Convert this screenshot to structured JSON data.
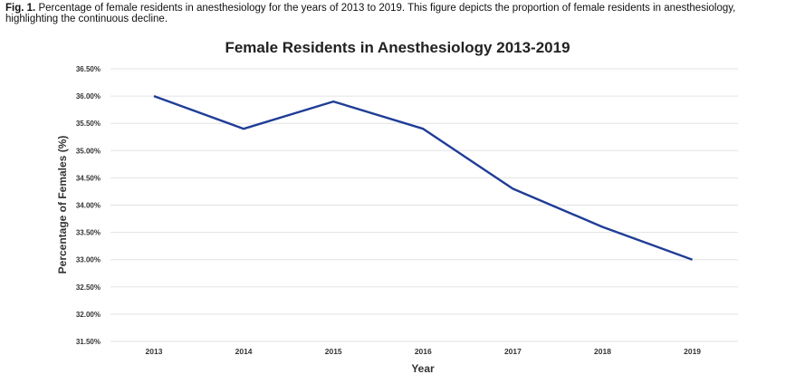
{
  "caption": {
    "label": "Fig. 1.",
    "text": "Percentage of female residents in anesthesiology for the years of 2013 to 2019. This figure depicts the proportion of female residents in anesthesiology, highlighting the continuous decline."
  },
  "chart_data": {
    "type": "line",
    "title": "Female Residents in Anesthesiology 2013-2019",
    "xlabel": "Year",
    "ylabel": "Percentage of Females (%)",
    "categories": [
      "2013",
      "2014",
      "2015",
      "2016",
      "2017",
      "2018",
      "2019"
    ],
    "series": [
      {
        "values": [
          36.0,
          35.4,
          35.9,
          35.4,
          34.3,
          33.6,
          33.0
        ]
      }
    ],
    "ylim": [
      31.5,
      36.5
    ],
    "yticks": [
      "31.50%",
      "32.00%",
      "32.50%",
      "33.00%",
      "33.50%",
      "34.00%",
      "34.50%",
      "35.00%",
      "35.50%",
      "36.00%",
      "36.50%"
    ],
    "grid": true,
    "line_color": "#1f3d96"
  }
}
